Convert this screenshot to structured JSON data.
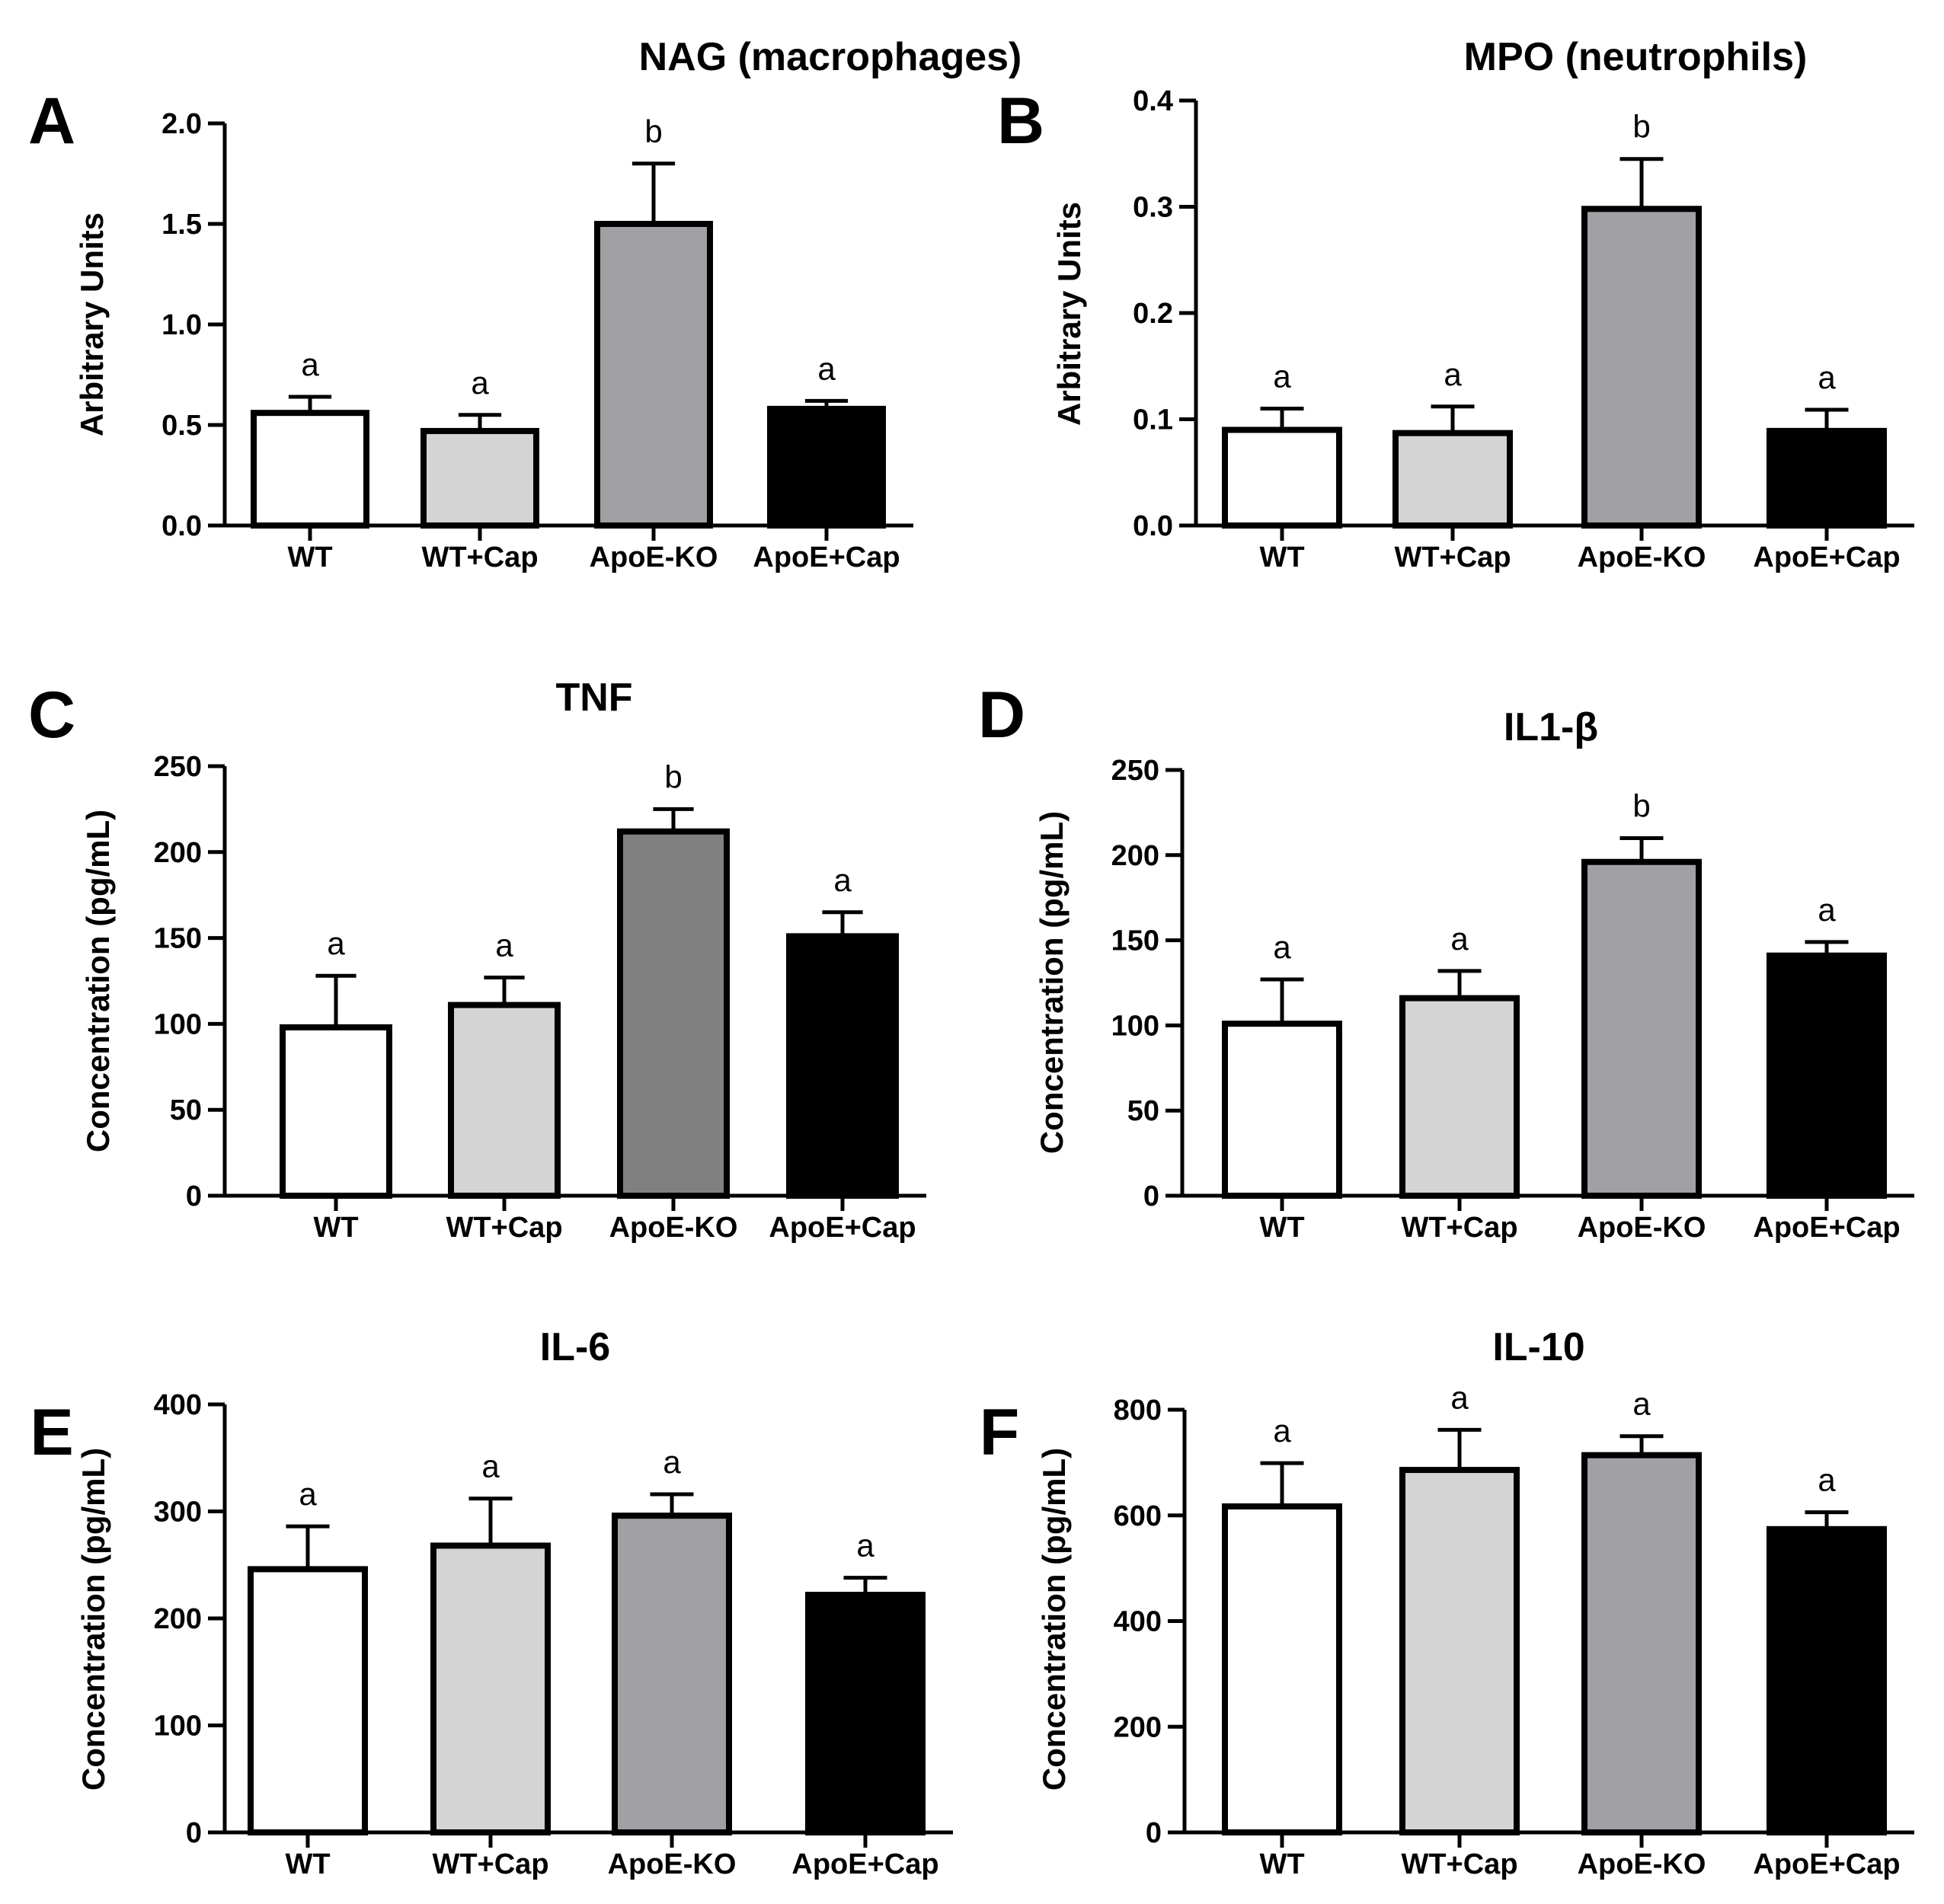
{
  "figure": {
    "colors": {
      "stroke": "#000000",
      "background": "#ffffff"
    }
  },
  "chart_data": [
    {
      "panel": "A",
      "type": "bar",
      "title": "NAG (macrophages)",
      "xlabel": "",
      "ylabel": "Arbitrary Units",
      "ylim": [
        0,
        2.0
      ],
      "ticks": [
        "0.0",
        "0.5",
        "1.0",
        "1.5",
        "2.0"
      ],
      "categories": [
        "WT",
        "WT+Cap",
        "ApoE-KO",
        "ApoE+Cap"
      ],
      "values": [
        0.56,
        0.47,
        1.5,
        0.58
      ],
      "errors": [
        0.08,
        0.08,
        0.3,
        0.04
      ],
      "significance": [
        "a",
        "a",
        "b",
        "a"
      ],
      "colors": [
        "#ffffff",
        "#d4d4d4",
        "#a1a1a5",
        "#000000"
      ]
    },
    {
      "panel": "B",
      "type": "bar",
      "title": "MPO (neutrophils)",
      "xlabel": "",
      "ylabel": "Arbitrary Units",
      "ylim": [
        0,
        0.4
      ],
      "ticks": [
        "0.0",
        "0.1",
        "0.2",
        "0.3",
        "0.4"
      ],
      "categories": [
        "WT",
        "WT+Cap",
        "ApoE-KO",
        "ApoE+Cap"
      ],
      "values": [
        0.09,
        0.087,
        0.298,
        0.089
      ],
      "errors": [
        0.02,
        0.025,
        0.047,
        0.02
      ],
      "significance": [
        "a",
        "a",
        "b",
        "a"
      ],
      "colors": [
        "#ffffff",
        "#d4d4d4",
        "#a1a1a5",
        "#000000"
      ]
    },
    {
      "panel": "C",
      "type": "bar",
      "title": "TNF",
      "xlabel": "",
      "ylabel": "Concentration (pg/mL)",
      "ylim": [
        0,
        250
      ],
      "ticks": [
        "0",
        "50",
        "100",
        "150",
        "200",
        "250"
      ],
      "categories": [
        "WT",
        "WT+Cap",
        "ApoE-KO",
        "ApoE+Cap"
      ],
      "values": [
        98,
        111,
        212,
        151
      ],
      "errors": [
        30,
        16,
        13,
        14
      ],
      "significance": [
        "a",
        "a",
        "b",
        "a"
      ],
      "colors": [
        "#ffffff",
        "#d4d4d4",
        "#808080",
        "#000000"
      ]
    },
    {
      "panel": "D",
      "type": "bar",
      "title": "IL1-β",
      "xlabel": "",
      "ylabel": "Concentration (pg/mL)",
      "ylim": [
        0,
        250
      ],
      "ticks": [
        "0",
        "50",
        "100",
        "150",
        "200",
        "250"
      ],
      "categories": [
        "WT",
        "WT+Cap",
        "ApoE-KO",
        "ApoE+Cap"
      ],
      "values": [
        101,
        116,
        196,
        141
      ],
      "errors": [
        26,
        16,
        14,
        8
      ],
      "significance": [
        "a",
        "a",
        "b",
        "a"
      ],
      "colors": [
        "#ffffff",
        "#d4d4d4",
        "#a1a1a5",
        "#000000"
      ]
    },
    {
      "panel": "E",
      "type": "bar",
      "title": "IL-6",
      "xlabel": "",
      "ylabel": "Concentration (pg/mL)",
      "ylim": [
        0,
        400
      ],
      "ticks": [
        "0",
        "100",
        "200",
        "300",
        "400"
      ],
      "categories": [
        "WT",
        "WT+Cap",
        "ApoE-KO",
        "ApoE+Cap"
      ],
      "values": [
        246,
        268,
        296,
        222
      ],
      "errors": [
        40,
        44,
        20,
        16
      ],
      "significance": [
        "a",
        "a",
        "a",
        "a"
      ],
      "colors": [
        "#ffffff",
        "#d4d4d4",
        "#a1a1a5",
        "#000000"
      ]
    },
    {
      "panel": "F",
      "type": "bar",
      "title": "IL-10",
      "xlabel": "",
      "ylabel": "Concentration (pg/mL)",
      "ylim": [
        0,
        800
      ],
      "ticks": [
        "0",
        "200",
        "400",
        "600",
        "800"
      ],
      "categories": [
        "WT",
        "WT+Cap",
        "ApoE-KO",
        "ApoE+Cap"
      ],
      "values": [
        617,
        686,
        714,
        574
      ],
      "errors": [
        82,
        76,
        36,
        32
      ],
      "significance": [
        "a",
        "a",
        "a",
        "a"
      ],
      "colors": [
        "#ffffff",
        "#d4d4d4",
        "#a1a1a5",
        "#000000"
      ]
    }
  ]
}
